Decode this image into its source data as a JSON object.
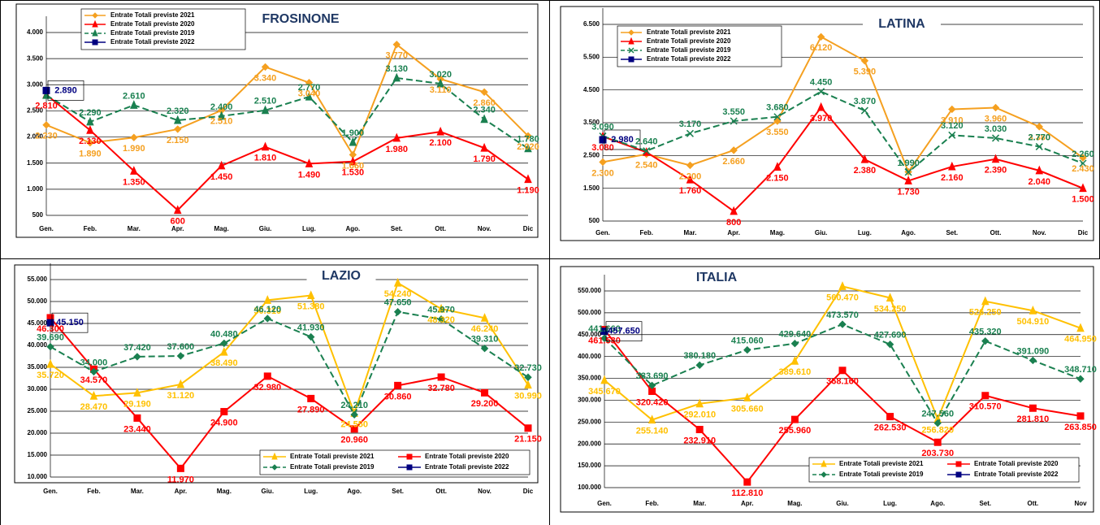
{
  "chart_data": [
    {
      "type": "line",
      "title": "FROSINONE",
      "legend": "upper left",
      "grid": true,
      "categories": [
        "Gen.",
        "Feb.",
        "Mar.",
        "Apr.",
        "Mag.",
        "Giu.",
        "Lug.",
        "Ago.",
        "Set.",
        "Ott.",
        "Nov.",
        "Dic"
      ],
      "ylim": [
        500,
        4000
      ],
      "yticks": [
        500,
        {
          "value": 1000,
          "label": "1.000"
        },
        {
          "value": 1500,
          "label": "1.500"
        },
        {
          "value": 2000,
          "label": "2.000"
        },
        {
          "value": 2500,
          "label": "2.500"
        },
        {
          "value": 3000,
          "label": "3.000"
        },
        {
          "value": 3500,
          "label": "3.500"
        },
        {
          "value": 4000,
          "label": "4.000"
        }
      ],
      "series": [
        {
          "name": "Entrate Totali previste 2021",
          "color": "#f5a020",
          "marker": "diamond",
          "dashed": false,
          "values": [
            2230,
            1890,
            1990,
            2150,
            2510,
            3340,
            3040,
            1660,
            3770,
            3110,
            2860,
            2020
          ],
          "value_labels": [
            "2.230",
            "1.890",
            "1.990",
            "2.150",
            "2.510",
            "3.340",
            "3.040",
            "1.660",
            "3.770",
            "3.110",
            "2.860",
            "2.020"
          ]
        },
        {
          "name": "Entrate Totali previste 2020",
          "color": "#ff0000",
          "marker": "triangle",
          "dashed": false,
          "values": [
            2810,
            2130,
            1350,
            600,
            1450,
            1810,
            1490,
            1530,
            1980,
            2100,
            1790,
            1190
          ],
          "value_labels": [
            "2.810",
            "2.130",
            "1.350",
            "600",
            "1.450",
            "1.810",
            "1.490",
            "1.530",
            "1.980",
            "2.100",
            "1.790",
            "1.190"
          ]
        },
        {
          "name": "Entrate Totali previste 2019",
          "color": "#1a8050",
          "marker": "triangle",
          "dashed": true,
          "values": [
            2800,
            2290,
            2610,
            2320,
            2400,
            2510,
            2770,
            1900,
            3130,
            3020,
            2340,
            1780
          ],
          "value_labels": [
            null,
            "2.290",
            "2.610",
            "2.320",
            "2.400",
            "2.510",
            "2.770",
            "1.900",
            "3.130",
            "3.020",
            "2.340",
            "1.780"
          ]
        },
        {
          "name": "Entrate Totali previste 2022",
          "color": "#000080",
          "marker": "square",
          "dashed": false,
          "values": [
            2890,
            null,
            null,
            null,
            null,
            null,
            null,
            null,
            null,
            null,
            null,
            null
          ],
          "value_labels": [
            "2.890",
            null,
            null,
            null,
            null,
            null,
            null,
            null,
            null,
            null,
            null,
            null
          ]
        }
      ]
    },
    {
      "type": "line",
      "title": "LATINA",
      "legend": "upper left",
      "grid": true,
      "categories": [
        "Gen.",
        "Feb.",
        "Mar.",
        "Apr.",
        "Mag.",
        "Giu.",
        "Lug.",
        "Ago.",
        "Set.",
        "Ott.",
        "Nov.",
        "Dic"
      ],
      "ylim": [
        500,
        6500
      ],
      "yticks": [
        500,
        {
          "value": 1500,
          "label": "1.500"
        },
        {
          "value": 2500,
          "label": "2.500"
        },
        {
          "value": 3500,
          "label": "3.500"
        },
        {
          "value": 4500,
          "label": "4.500"
        },
        {
          "value": 5500,
          "label": "5.500"
        },
        {
          "value": 6500,
          "label": "6.500"
        }
      ],
      "series": [
        {
          "name": "Entrate Totali previste 2021",
          "color": "#f5a020",
          "marker": "diamond",
          "dashed": false,
          "values": [
            2300,
            2540,
            2200,
            2660,
            3550,
            6120,
            5390,
            2000,
            3910,
            3960,
            3380,
            2430
          ],
          "value_labels": [
            "2.300",
            "2.540",
            "2.200",
            "2.660",
            "3.550",
            "6.120",
            "5.390",
            null,
            "3.910",
            "3.960",
            "3.380",
            "2.430"
          ]
        },
        {
          "name": "Entrate Totali previste 2020",
          "color": "#ff0000",
          "marker": "triangle",
          "dashed": false,
          "values": [
            3080,
            2600,
            1760,
            800,
            2150,
            3970,
            2380,
            1730,
            2160,
            2390,
            2040,
            1500
          ],
          "value_labels": [
            "3.080",
            null,
            "1.760",
            "800",
            "2.150",
            "3.970",
            "2.380",
            "1.730",
            "2.160",
            "2.390",
            "2.040",
            "1.500"
          ]
        },
        {
          "name": "Entrate Totali previste 2019",
          "color": "#1a8050",
          "marker": "cross",
          "dashed": true,
          "values": [
            3090,
            2640,
            3170,
            3550,
            3680,
            4450,
            3870,
            1990,
            3120,
            3030,
            2770,
            2260
          ],
          "value_labels": [
            "3.090",
            "2.640",
            "3.170",
            "3.550",
            "3.680",
            "4.450",
            "3.870",
            "1.990",
            "3.120",
            "3.030",
            "2.770",
            "2.260"
          ]
        },
        {
          "name": "Entrate Totali previste 2022",
          "color": "#000080",
          "marker": "square",
          "dashed": false,
          "values": [
            2980,
            null,
            null,
            null,
            null,
            null,
            null,
            null,
            null,
            null,
            null,
            null
          ],
          "value_labels": [
            "2.980",
            null,
            null,
            null,
            null,
            null,
            null,
            null,
            null,
            null,
            null,
            null
          ]
        }
      ]
    },
    {
      "type": "line",
      "title": "LAZIO",
      "legend": "lower right",
      "grid": true,
      "categories": [
        "Gen.",
        "Feb.",
        "Mar.",
        "Apr.",
        "Mag.",
        "Giu.",
        "Lug.",
        "Ago.",
        "Set.",
        "Ott.",
        "Nov.",
        "Dic"
      ],
      "ylim": [
        10000,
        55000
      ],
      "yticks": [
        {
          "value": 10000,
          "label": "10.000"
        },
        {
          "value": 15000,
          "label": "15.000"
        },
        {
          "value": 20000,
          "label": "20.000"
        },
        {
          "value": 25000,
          "label": "25.000"
        },
        {
          "value": 30000,
          "label": "30.000"
        },
        {
          "value": 35000,
          "label": "35.000"
        },
        {
          "value": 40000,
          "label": "40.000"
        },
        {
          "value": 45000,
          "label": "45.000"
        },
        {
          "value": 50000,
          "label": "50.000"
        },
        {
          "value": 55000,
          "label": "55.000"
        }
      ],
      "series": [
        {
          "name": "Entrate Totali previste 2021",
          "color": "#ffc000",
          "marker": "triangle",
          "dashed": false,
          "values": [
            35720,
            28470,
            29190,
            31120,
            38490,
            50310,
            51380,
            24550,
            54240,
            48320,
            46240,
            30990
          ],
          "value_labels": [
            "35.720",
            "28.470",
            "29.190",
            "31.120",
            "38.490",
            "50.310",
            "51.380",
            "24.550",
            "54.240",
            "48.320",
            "46.240",
            "30.990"
          ]
        },
        {
          "name": "Entrate Totali previste 2020",
          "color": "#ff0000",
          "marker": "square",
          "dashed": false,
          "values": [
            46300,
            34570,
            23440,
            11970,
            24900,
            32980,
            27890,
            20960,
            30860,
            32780,
            29200,
            21150
          ],
          "value_labels": [
            "46.300",
            "34.570",
            "23.440",
            "11.970",
            "24.900",
            "32.980",
            "27.890",
            "20.960",
            "30.860",
            "32.780",
            "29.200",
            "21.150"
          ]
        },
        {
          "name": "Entrate Totali previste 2019",
          "color": "#1a8050",
          "marker": "diamond",
          "dashed": true,
          "values": [
            39690,
            34000,
            37420,
            37600,
            40480,
            46120,
            41930,
            24210,
            47650,
            45970,
            39310,
            32730
          ],
          "value_labels": [
            "39.690",
            "34.000",
            "37.420",
            "37.600",
            "40.480",
            "46.120",
            "41.930",
            "24.210",
            "47.650",
            "45.970",
            "39.310",
            "32.730"
          ]
        },
        {
          "name": "Entrate Totali previste 2022",
          "color": "#000080",
          "marker": "square",
          "dashed": false,
          "values": [
            45150,
            null,
            null,
            null,
            null,
            null,
            null,
            null,
            null,
            null,
            null,
            null
          ],
          "value_labels": [
            "45.150",
            null,
            null,
            null,
            null,
            null,
            null,
            null,
            null,
            null,
            null,
            null
          ]
        }
      ]
    },
    {
      "type": "line",
      "title": "ITALIA",
      "legend": "lower right",
      "grid": true,
      "categories": [
        "Gen.",
        "Feb.",
        "Mar.",
        "Apr.",
        "Mag.",
        "Giu.",
        "Lug.",
        "Ago.",
        "Set.",
        "Ott.",
        "Nov"
      ],
      "ylim": [
        100000,
        550000
      ],
      "yticks": [
        {
          "value": 100000,
          "label": "100.000"
        },
        {
          "value": 150000,
          "label": "150.000"
        },
        {
          "value": 200000,
          "label": "200.000"
        },
        {
          "value": 250000,
          "label": "250.000"
        },
        {
          "value": 300000,
          "label": "300.000"
        },
        {
          "value": 350000,
          "label": "350.000"
        },
        {
          "value": 400000,
          "label": "400.000"
        },
        {
          "value": 450000,
          "label": "450.000"
        },
        {
          "value": 500000,
          "label": "500.000"
        },
        {
          "value": 550000,
          "label": "550.000"
        }
      ],
      "series": [
        {
          "name": "Entrate Totali previste 2021",
          "color": "#ffc000",
          "marker": "triangle",
          "dashed": false,
          "values": [
            345670,
            255140,
            292010,
            305660,
            389610,
            560470,
            534250,
            256820,
            526250,
            504910,
            464950
          ],
          "value_labels": [
            "345.670",
            "255.140",
            "292.010",
            "305.660",
            "389.610",
            "560.470",
            "534.250",
            "256.820",
            "526.250",
            "504.910",
            "464.950"
          ]
        },
        {
          "name": "Entrate Totali previste 2020",
          "color": "#ff0000",
          "marker": "square",
          "dashed": false,
          "values": [
            461530,
            320420,
            232910,
            112810,
            255960,
            368160,
            262530,
            203730,
            310570,
            281810,
            263850
          ],
          "value_labels": [
            "461.530",
            "320.420",
            "232.910",
            "112.810",
            "255.960",
            "368.160",
            "262.530",
            "203.730",
            "310.570",
            "281.810",
            "263.850"
          ]
        },
        {
          "name": "Entrate Totali previste 2019",
          "color": "#1a8050",
          "marker": "diamond",
          "dashed": true,
          "values": [
            441660,
            333690,
            380180,
            415060,
            429640,
            473570,
            427690,
            247560,
            435320,
            391090,
            348710
          ],
          "value_labels": [
            "441.660",
            "333.690",
            "380.180",
            "415.060",
            "429.640",
            "473.570",
            "427.690",
            "247.560",
            "435.320",
            "391.090",
            "348.710"
          ]
        },
        {
          "name": "Entrate Totali previste 2022",
          "color": "#000080",
          "marker": "square",
          "dashed": false,
          "values": [
            457650,
            null,
            null,
            null,
            null,
            null,
            null,
            null,
            null,
            null,
            null
          ],
          "value_labels": [
            "457.650",
            null,
            null,
            null,
            null,
            null,
            null,
            null,
            null,
            null,
            null
          ]
        }
      ]
    }
  ]
}
